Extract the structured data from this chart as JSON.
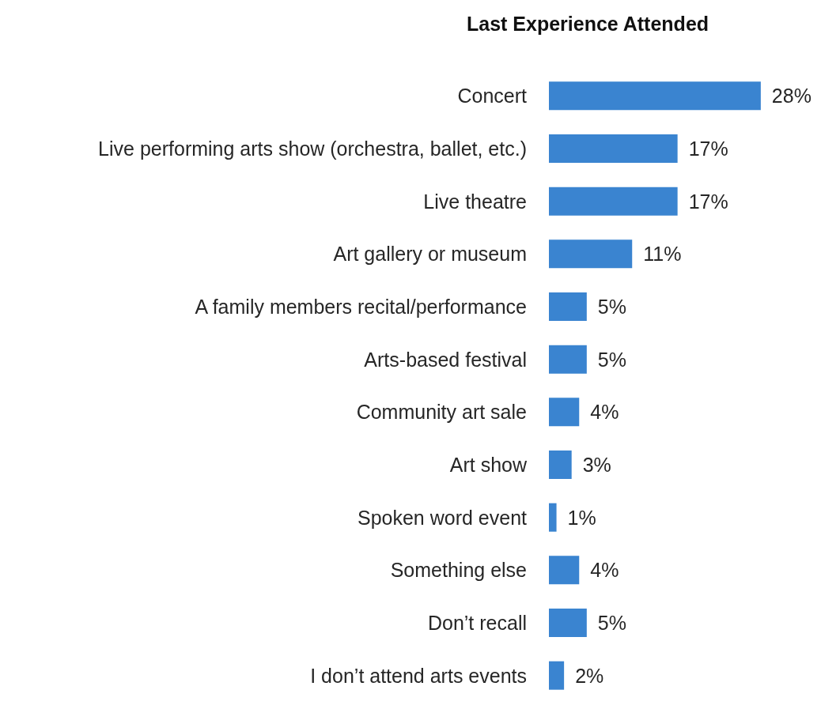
{
  "chart_data": {
    "type": "bar",
    "orientation": "horizontal",
    "title": "Last Experience Attended",
    "categories": [
      "Concert",
      "Live performing arts show (orchestra, ballet, etc.)",
      "Live theatre",
      "Art gallery or museum",
      "A family members recital/performance",
      "Arts-based festival",
      "Community art sale",
      "Art show",
      "Spoken word event",
      "Something else",
      "Don’t recall",
      "I don’t attend arts events"
    ],
    "values": [
      28,
      17,
      17,
      11,
      5,
      5,
      4,
      3,
      1,
      4,
      5,
      2
    ],
    "value_labels": [
      "28%",
      "17%",
      "17%",
      "11%",
      "5%",
      "5%",
      "4%",
      "3%",
      "1%",
      "4%",
      "5%",
      "2%"
    ],
    "color": "#3a84d0"
  }
}
